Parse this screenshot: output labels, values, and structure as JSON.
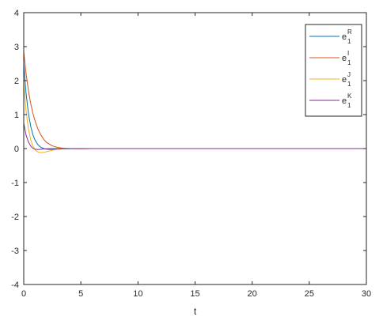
{
  "chart_data": {
    "type": "line",
    "title": "",
    "xlabel": "t",
    "ylabel": "",
    "xlim": [
      0,
      30
    ],
    "ylim": [
      -4,
      4
    ],
    "xticks": [
      "0",
      "5",
      "10",
      "15",
      "20",
      "25",
      "30"
    ],
    "yticks": [
      "4",
      "3",
      "2",
      "1",
      "0",
      "-1",
      "-2",
      "-3",
      "-4"
    ],
    "grid": false,
    "legend_position": "top-right",
    "series": [
      {
        "name": "e1R",
        "label_base": "e",
        "label_sup": "R",
        "label_sub": "1",
        "color": "#0072BD",
        "x": [
          0,
          0.2,
          0.4,
          0.6,
          0.8,
          1,
          1.25,
          1.5,
          1.75,
          2,
          2.5,
          3,
          3.5,
          4,
          5,
          6,
          8,
          10,
          15,
          20,
          25,
          30
        ],
        "y": [
          2.5,
          1.64,
          1.06,
          0.67,
          0.41,
          0.24,
          0.11,
          0.04,
          0.0,
          -0.02,
          -0.03,
          -0.02,
          -0.01,
          -0.005,
          0,
          0,
          0,
          0,
          0,
          0,
          0,
          0
        ]
      },
      {
        "name": "e1I",
        "label_base": "e",
        "label_sup": "I",
        "label_sub": "1",
        "color": "#D95319",
        "x": [
          0,
          0.2,
          0.4,
          0.6,
          0.8,
          1,
          1.25,
          1.5,
          1.75,
          2,
          2.5,
          3,
          3.5,
          4,
          5,
          6,
          8,
          10,
          15,
          20,
          25,
          30
        ],
        "y": [
          2.85,
          2.22,
          1.73,
          1.34,
          1.04,
          0.8,
          0.57,
          0.4,
          0.27,
          0.18,
          0.08,
          0.03,
          0.01,
          0.0,
          -0.005,
          0,
          0,
          0,
          0,
          0,
          0,
          0
        ]
      },
      {
        "name": "e1J",
        "label_base": "e",
        "label_sup": "J",
        "label_sub": "1",
        "color": "#EDB120",
        "x": [
          0,
          0.2,
          0.4,
          0.6,
          0.8,
          1,
          1.25,
          1.5,
          1.75,
          2,
          2.5,
          3,
          3.5,
          4,
          5,
          6,
          8,
          10,
          15,
          20,
          25,
          30
        ],
        "y": [
          1.95,
          1.12,
          0.6,
          0.27,
          0.07,
          -0.04,
          -0.1,
          -0.12,
          -0.11,
          -0.09,
          -0.05,
          -0.02,
          -0.01,
          0,
          0,
          0,
          0,
          0,
          0,
          0,
          0,
          0
        ]
      },
      {
        "name": "e1K",
        "label_base": "e",
        "label_sup": "K",
        "label_sub": "1",
        "color": "#7E2F8E",
        "x": [
          0,
          0.2,
          0.4,
          0.6,
          0.8,
          1,
          1.25,
          1.5,
          1.75,
          2,
          2.5,
          3,
          3.5,
          4,
          5,
          6,
          8,
          10,
          15,
          20,
          25,
          30
        ],
        "y": [
          0.75,
          0.4,
          0.2,
          0.08,
          0.01,
          -0.02,
          -0.03,
          -0.02,
          -0.01,
          -0.005,
          0,
          0,
          0,
          0,
          0,
          0,
          0,
          0,
          0,
          0,
          0,
          0
        ]
      }
    ]
  }
}
